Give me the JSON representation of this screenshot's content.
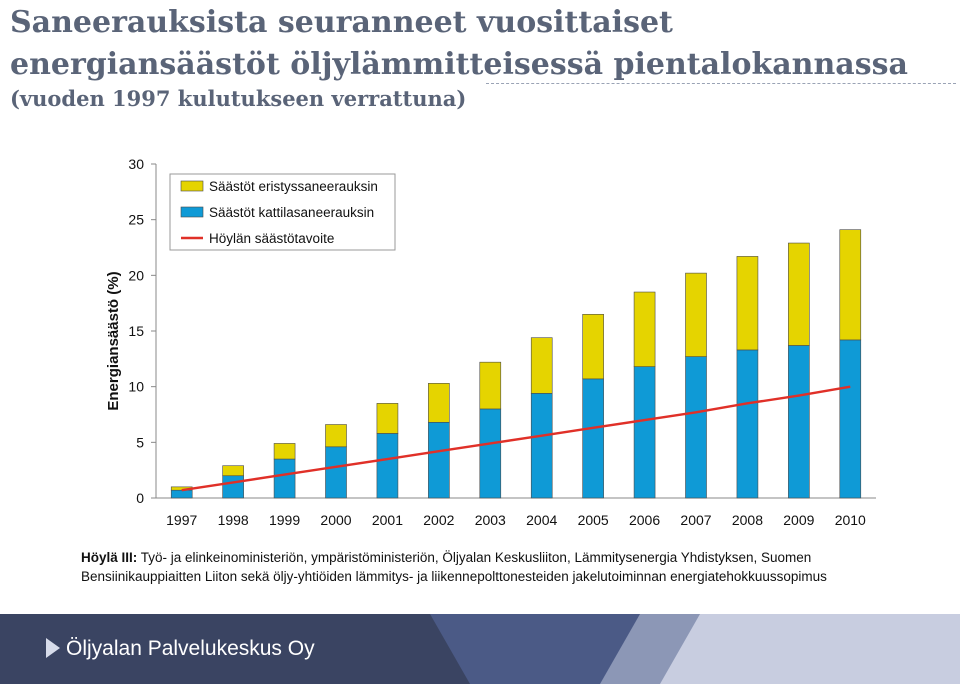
{
  "header": {
    "title": "Saneerauksista seuranneet vuosittaiset energiansäästöt öljylämmitteisessä pientalokannassa",
    "subtitle": "(vuoden 1997 kulutukseen verrattuna)"
  },
  "chart_data": {
    "type": "bar",
    "stacked": true,
    "categories": [
      "1997",
      "1998",
      "1999",
      "2000",
      "2001",
      "2002",
      "2003",
      "2004",
      "2005",
      "2006",
      "2007",
      "2008",
      "2009",
      "2010"
    ],
    "series": [
      {
        "name": "Säästöt kattilasaneerauksin",
        "color": "#0f9ad6",
        "values": [
          0.7,
          2.0,
          3.5,
          4.6,
          5.8,
          6.8,
          8.0,
          9.4,
          10.7,
          11.8,
          12.7,
          13.3,
          13.7,
          14.2
        ]
      },
      {
        "name": "Säästöt eristyssaneerauksin",
        "color": "#e5d400",
        "values": [
          0.3,
          0.9,
          1.4,
          2.0,
          2.7,
          3.5,
          4.2,
          5.0,
          5.8,
          6.7,
          7.5,
          8.4,
          9.2,
          9.9
        ]
      }
    ],
    "target_line": {
      "name": "Höylän säästötavoite",
      "color": "#e03028",
      "values": [
        0.7,
        1.4,
        2.1,
        2.8,
        3.5,
        4.2,
        4.9,
        5.6,
        6.3,
        7.0,
        7.7,
        8.5,
        9.2,
        10.0
      ]
    },
    "ylabel": "Energiansäästö (%)",
    "xlabel": "",
    "ylim": [
      0,
      30
    ],
    "yticks": [
      0,
      5,
      10,
      15,
      20,
      25,
      30
    ],
    "legend": "top-left",
    "legend_order": [
      "Säästöt eristyssaneerauksin",
      "Säästöt kattilasaneerauksin",
      "Höylän säästötavoite"
    ],
    "grid": false
  },
  "source": {
    "lead": "Höylä III:",
    "text": " Työ- ja elinkeinoministeriön, ympäristöministeriön, Öljyalan Keskusliiton, Lämmitysenergia Yhdistyksen, Suomen Bensiinikauppiaitten Liiton sekä öljy-yhtiöiden lämmitys- ja liikennepolttonesteiden jakelutoiminnan energiatehokkuussopimus"
  },
  "footer": {
    "company": "Öljyalan Palvelukeskus Oy",
    "colors": {
      "band_dark": "#3a4462",
      "band_mid": "#4b5a86",
      "band_light": "#8c97b6",
      "band_pale": "#c8cde0"
    }
  }
}
